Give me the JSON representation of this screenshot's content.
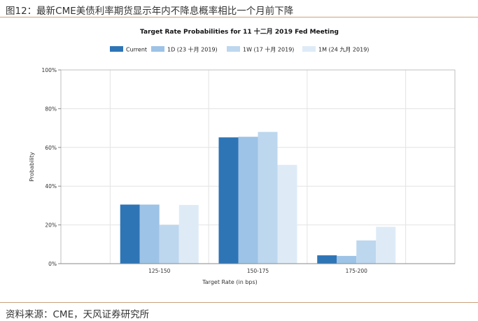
{
  "figure": {
    "title": "图12：最新CME美债利率期货显示年内不降息概率相比一个月前下降",
    "source": "资料来源：CME，天风证券研究所"
  },
  "chart_data": {
    "type": "bar",
    "title": "Target Rate Probabilities for 11 十二月 2019 Fed Meeting",
    "xlabel": "Target Rate (in bps)",
    "ylabel": "Probability",
    "categories": [
      "125-150",
      "150-175",
      "175-200"
    ],
    "ylim": [
      0,
      100
    ],
    "yticks": [
      "0%",
      "20%",
      "40%",
      "60%",
      "80%",
      "100%"
    ],
    "ytick_values": [
      0,
      20,
      40,
      60,
      80,
      100
    ],
    "grid": true,
    "legend_position": "top",
    "series": [
      {
        "name": "Current",
        "color": "#2e75b6",
        "values": [
          30.5,
          65.2,
          4.3
        ]
      },
      {
        "name": "1D (23 十月 2019)",
        "color": "#9dc3e6",
        "values": [
          30.5,
          65.5,
          4.0
        ]
      },
      {
        "name": "1W (17 十月 2019)",
        "color": "#bdd7ee",
        "values": [
          20.0,
          68.0,
          12.0
        ]
      },
      {
        "name": "1M (24 九月 2019)",
        "color": "#deebf7",
        "values": [
          30.3,
          51.0,
          19.0
        ]
      }
    ]
  }
}
